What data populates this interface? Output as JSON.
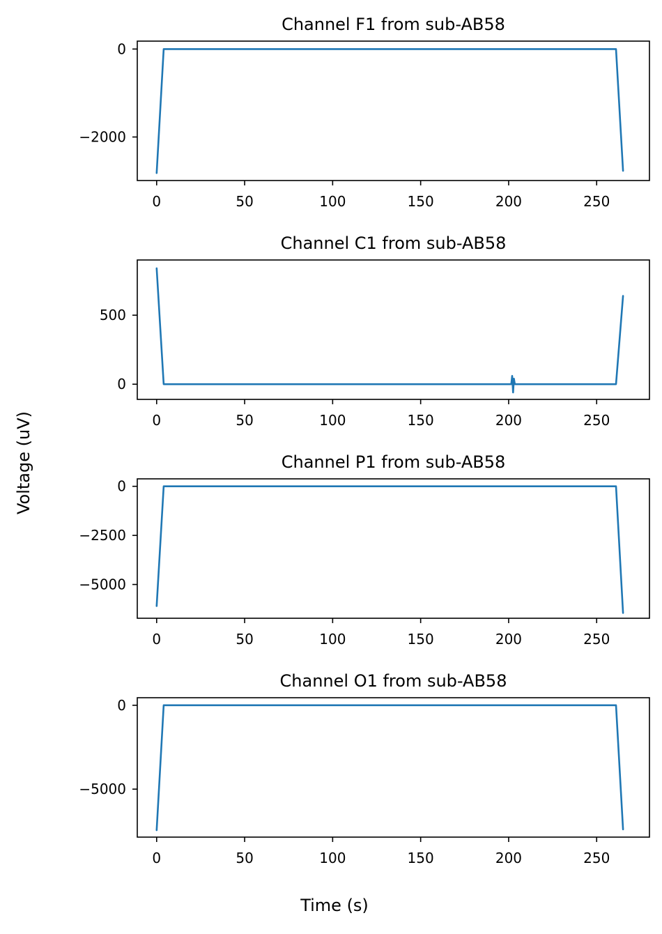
{
  "figure": {
    "xlabel": "Time (s)",
    "ylabel": "Voltage (uV)",
    "line_color": "#1f77b4"
  },
  "chart_data": [
    {
      "type": "line",
      "title": "Channel F1 from sub-AB58",
      "xlim": [
        -11,
        280
      ],
      "ylim": [
        -2990,
        180
      ],
      "xticks": [
        0,
        50,
        100,
        150,
        200,
        250
      ],
      "xtick_labels": [
        "0",
        "50",
        "100",
        "150",
        "200",
        "250"
      ],
      "yticks": [
        0,
        -2000
      ],
      "ytick_labels": [
        "0",
        "−2000"
      ],
      "series": [
        {
          "x": [
            0,
            4,
            130,
            261,
            265
          ],
          "y": [
            -2820,
            0,
            0,
            0,
            -2770
          ]
        }
      ]
    },
    {
      "type": "line",
      "title": "Channel C1 from sub-AB58",
      "xlim": [
        -11,
        280
      ],
      "ylim": [
        -110,
        900
      ],
      "xticks": [
        0,
        50,
        100,
        150,
        200,
        250
      ],
      "xtick_labels": [
        "0",
        "50",
        "100",
        "150",
        "200",
        "250"
      ],
      "yticks": [
        500,
        0
      ],
      "ytick_labels": [
        "500",
        "0"
      ],
      "series": [
        {
          "x": [
            0,
            4,
            201.5,
            202,
            202.5,
            203,
            203.5,
            261,
            265
          ],
          "y": [
            840,
            0,
            0,
            60,
            -60,
            40,
            0,
            0,
            640
          ]
        }
      ]
    },
    {
      "type": "line",
      "title": "Channel P1 from sub-AB58",
      "xlim": [
        -11,
        280
      ],
      "ylim": [
        -6720,
        380
      ],
      "xticks": [
        0,
        50,
        100,
        150,
        200,
        250
      ],
      "xtick_labels": [
        "0",
        "50",
        "100",
        "150",
        "200",
        "250"
      ],
      "yticks": [
        0,
        -2500,
        -5000
      ],
      "ytick_labels": [
        "0",
        "−2500",
        "−5000"
      ],
      "series": [
        {
          "x": [
            0,
            4,
            130,
            261,
            265
          ],
          "y": [
            -6100,
            0,
            0,
            0,
            -6450
          ]
        }
      ]
    },
    {
      "type": "line",
      "title": "Channel O1 from sub-AB58",
      "xlim": [
        -11,
        280
      ],
      "ylim": [
        -7860,
        450
      ],
      "xticks": [
        0,
        50,
        100,
        150,
        200,
        250
      ],
      "xtick_labels": [
        "0",
        "50",
        "100",
        "150",
        "200",
        "250"
      ],
      "yticks": [
        0,
        -5000
      ],
      "ytick_labels": [
        "0",
        "−5000"
      ],
      "series": [
        {
          "x": [
            0,
            4,
            130,
            261,
            265
          ],
          "y": [
            -7450,
            0,
            0,
            0,
            -7400
          ]
        }
      ]
    }
  ]
}
